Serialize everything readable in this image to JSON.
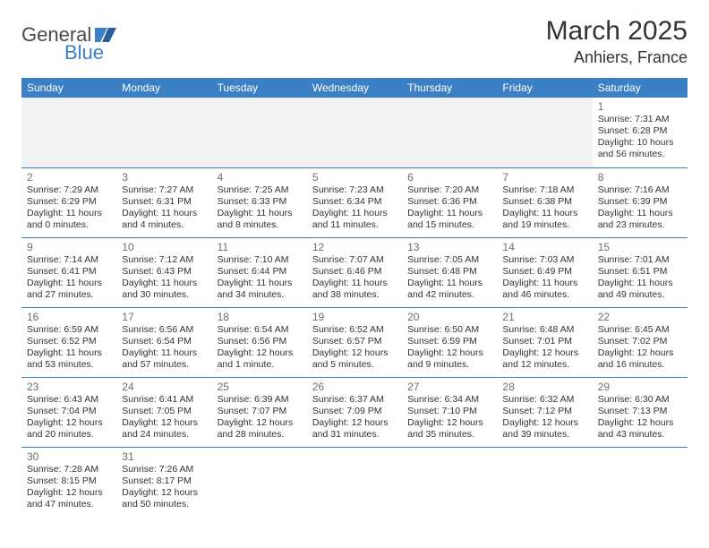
{
  "logo": {
    "word1": "General",
    "word2": "Blue"
  },
  "colors": {
    "header_bg": "#3b7fc4",
    "header_text": "#ffffff",
    "rule": "#3b7fc4",
    "daynum": "#6e6e6e",
    "text": "#333333",
    "empty_bg": "#f2f2f2",
    "logo_accent": "#3b7fc4"
  },
  "title": "March 2025",
  "location": "Anhiers, France",
  "weekdays": [
    "Sunday",
    "Monday",
    "Tuesday",
    "Wednesday",
    "Thursday",
    "Friday",
    "Saturday"
  ],
  "first_weekday_index": 6,
  "days": [
    {
      "n": "1",
      "sunrise": "Sunrise: 7:31 AM",
      "sunset": "Sunset: 6:28 PM",
      "daylight": "Daylight: 10 hours and 56 minutes."
    },
    {
      "n": "2",
      "sunrise": "Sunrise: 7:29 AM",
      "sunset": "Sunset: 6:29 PM",
      "daylight": "Daylight: 11 hours and 0 minutes."
    },
    {
      "n": "3",
      "sunrise": "Sunrise: 7:27 AM",
      "sunset": "Sunset: 6:31 PM",
      "daylight": "Daylight: 11 hours and 4 minutes."
    },
    {
      "n": "4",
      "sunrise": "Sunrise: 7:25 AM",
      "sunset": "Sunset: 6:33 PM",
      "daylight": "Daylight: 11 hours and 8 minutes."
    },
    {
      "n": "5",
      "sunrise": "Sunrise: 7:23 AM",
      "sunset": "Sunset: 6:34 PM",
      "daylight": "Daylight: 11 hours and 11 minutes."
    },
    {
      "n": "6",
      "sunrise": "Sunrise: 7:20 AM",
      "sunset": "Sunset: 6:36 PM",
      "daylight": "Daylight: 11 hours and 15 minutes."
    },
    {
      "n": "7",
      "sunrise": "Sunrise: 7:18 AM",
      "sunset": "Sunset: 6:38 PM",
      "daylight": "Daylight: 11 hours and 19 minutes."
    },
    {
      "n": "8",
      "sunrise": "Sunrise: 7:16 AM",
      "sunset": "Sunset: 6:39 PM",
      "daylight": "Daylight: 11 hours and 23 minutes."
    },
    {
      "n": "9",
      "sunrise": "Sunrise: 7:14 AM",
      "sunset": "Sunset: 6:41 PM",
      "daylight": "Daylight: 11 hours and 27 minutes."
    },
    {
      "n": "10",
      "sunrise": "Sunrise: 7:12 AM",
      "sunset": "Sunset: 6:43 PM",
      "daylight": "Daylight: 11 hours and 30 minutes."
    },
    {
      "n": "11",
      "sunrise": "Sunrise: 7:10 AM",
      "sunset": "Sunset: 6:44 PM",
      "daylight": "Daylight: 11 hours and 34 minutes."
    },
    {
      "n": "12",
      "sunrise": "Sunrise: 7:07 AM",
      "sunset": "Sunset: 6:46 PM",
      "daylight": "Daylight: 11 hours and 38 minutes."
    },
    {
      "n": "13",
      "sunrise": "Sunrise: 7:05 AM",
      "sunset": "Sunset: 6:48 PM",
      "daylight": "Daylight: 11 hours and 42 minutes."
    },
    {
      "n": "14",
      "sunrise": "Sunrise: 7:03 AM",
      "sunset": "Sunset: 6:49 PM",
      "daylight": "Daylight: 11 hours and 46 minutes."
    },
    {
      "n": "15",
      "sunrise": "Sunrise: 7:01 AM",
      "sunset": "Sunset: 6:51 PM",
      "daylight": "Daylight: 11 hours and 49 minutes."
    },
    {
      "n": "16",
      "sunrise": "Sunrise: 6:59 AM",
      "sunset": "Sunset: 6:52 PM",
      "daylight": "Daylight: 11 hours and 53 minutes."
    },
    {
      "n": "17",
      "sunrise": "Sunrise: 6:56 AM",
      "sunset": "Sunset: 6:54 PM",
      "daylight": "Daylight: 11 hours and 57 minutes."
    },
    {
      "n": "18",
      "sunrise": "Sunrise: 6:54 AM",
      "sunset": "Sunset: 6:56 PM",
      "daylight": "Daylight: 12 hours and 1 minute."
    },
    {
      "n": "19",
      "sunrise": "Sunrise: 6:52 AM",
      "sunset": "Sunset: 6:57 PM",
      "daylight": "Daylight: 12 hours and 5 minutes."
    },
    {
      "n": "20",
      "sunrise": "Sunrise: 6:50 AM",
      "sunset": "Sunset: 6:59 PM",
      "daylight": "Daylight: 12 hours and 9 minutes."
    },
    {
      "n": "21",
      "sunrise": "Sunrise: 6:48 AM",
      "sunset": "Sunset: 7:01 PM",
      "daylight": "Daylight: 12 hours and 12 minutes."
    },
    {
      "n": "22",
      "sunrise": "Sunrise: 6:45 AM",
      "sunset": "Sunset: 7:02 PM",
      "daylight": "Daylight: 12 hours and 16 minutes."
    },
    {
      "n": "23",
      "sunrise": "Sunrise: 6:43 AM",
      "sunset": "Sunset: 7:04 PM",
      "daylight": "Daylight: 12 hours and 20 minutes."
    },
    {
      "n": "24",
      "sunrise": "Sunrise: 6:41 AM",
      "sunset": "Sunset: 7:05 PM",
      "daylight": "Daylight: 12 hours and 24 minutes."
    },
    {
      "n": "25",
      "sunrise": "Sunrise: 6:39 AM",
      "sunset": "Sunset: 7:07 PM",
      "daylight": "Daylight: 12 hours and 28 minutes."
    },
    {
      "n": "26",
      "sunrise": "Sunrise: 6:37 AM",
      "sunset": "Sunset: 7:09 PM",
      "daylight": "Daylight: 12 hours and 31 minutes."
    },
    {
      "n": "27",
      "sunrise": "Sunrise: 6:34 AM",
      "sunset": "Sunset: 7:10 PM",
      "daylight": "Daylight: 12 hours and 35 minutes."
    },
    {
      "n": "28",
      "sunrise": "Sunrise: 6:32 AM",
      "sunset": "Sunset: 7:12 PM",
      "daylight": "Daylight: 12 hours and 39 minutes."
    },
    {
      "n": "29",
      "sunrise": "Sunrise: 6:30 AM",
      "sunset": "Sunset: 7:13 PM",
      "daylight": "Daylight: 12 hours and 43 minutes."
    },
    {
      "n": "30",
      "sunrise": "Sunrise: 7:28 AM",
      "sunset": "Sunset: 8:15 PM",
      "daylight": "Daylight: 12 hours and 47 minutes."
    },
    {
      "n": "31",
      "sunrise": "Sunrise: 7:26 AM",
      "sunset": "Sunset: 8:17 PM",
      "daylight": "Daylight: 12 hours and 50 minutes."
    }
  ]
}
